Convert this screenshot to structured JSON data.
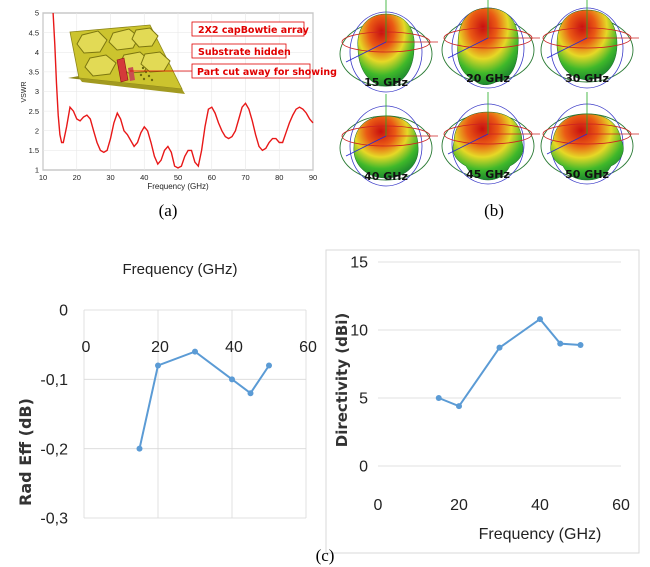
{
  "colors": {
    "vswr_line": "#e81818",
    "blue_series": "#5b9bd5",
    "callout_red": "#e00000",
    "board": "#c9c02c"
  },
  "panel_labels": {
    "a": "(a)",
    "b": "(b)",
    "c": "(c)"
  },
  "callouts": [
    "2X2 capBowtie array",
    "Substrate hidden",
    "Part cut away for showing"
  ],
  "patterns": [
    {
      "label": "15 GHz"
    },
    {
      "label": "20 GHz"
    },
    {
      "label": "30 GHz"
    },
    {
      "label": "40 GHz"
    },
    {
      "label": "45 GHz"
    },
    {
      "label": "50 GHz"
    }
  ],
  "chart_data": [
    {
      "id": "vswr",
      "type": "line",
      "xlabel": "Frequency (GHz)",
      "ylabel": "VSWR",
      "xlim": [
        10,
        90
      ],
      "ylim": [
        1,
        5
      ],
      "xticks": [
        "10",
        "20",
        "30",
        "40",
        "50",
        "60",
        "70",
        "80",
        "90"
      ],
      "yticks": [
        "1",
        "1.5",
        "2",
        "2.5",
        "3",
        "3.5",
        "4",
        "4.5",
        "5"
      ],
      "grid": true,
      "series": [
        {
          "x": [
            13,
            13.5,
            14,
            14.5,
            15,
            15.5,
            16,
            17,
            18,
            19,
            20,
            21,
            22,
            23,
            24,
            25,
            26,
            27,
            28,
            29,
            30,
            31,
            32,
            33,
            34,
            35,
            36,
            37,
            38,
            39,
            40,
            41,
            42,
            43,
            44,
            45,
            46,
            47,
            48,
            49,
            50,
            51,
            52,
            53,
            54,
            55,
            56,
            57,
            58,
            59,
            60,
            61,
            62,
            63,
            64,
            65,
            66,
            67,
            68,
            69,
            70,
            71,
            72,
            73,
            74,
            75,
            76,
            77,
            78,
            79,
            80,
            81,
            82,
            83,
            84,
            85,
            86,
            87,
            88,
            89,
            90
          ],
          "y": [
            5.0,
            4.2,
            3.2,
            2.4,
            1.9,
            1.7,
            1.7,
            2.1,
            2.6,
            2.5,
            2.3,
            2.25,
            2.35,
            2.4,
            2.3,
            2.0,
            1.7,
            1.5,
            1.45,
            1.5,
            1.8,
            2.2,
            2.45,
            2.3,
            2.0,
            1.9,
            1.75,
            1.6,
            1.7,
            1.95,
            2.1,
            2.0,
            1.7,
            1.35,
            1.15,
            1.25,
            1.5,
            1.6,
            1.45,
            1.1,
            1.05,
            1.1,
            1.35,
            1.5,
            1.5,
            1.2,
            1.1,
            1.5,
            2.1,
            2.55,
            2.6,
            2.45,
            2.2,
            2.0,
            1.85,
            1.8,
            1.85,
            2.0,
            2.3,
            2.6,
            2.7,
            2.55,
            2.25,
            1.9,
            1.6,
            1.5,
            1.55,
            1.7,
            1.8,
            1.8,
            1.7,
            1.7,
            1.95,
            2.2,
            2.4,
            2.55,
            2.6,
            2.55,
            2.45,
            2.3,
            2.2
          ]
        }
      ]
    },
    {
      "id": "rad_eff",
      "type": "line",
      "title": "Frequency (GHz)",
      "ylabel": "Rad Eff (dB)",
      "xlim": [
        0,
        60
      ],
      "ylim": [
        -0.3,
        0
      ],
      "xticks": [
        "0",
        "20",
        "40",
        "60"
      ],
      "yticks": [
        "0",
        "-0,1",
        "-0,2",
        "-0,3"
      ],
      "grid": true,
      "series": [
        {
          "x": [
            15,
            20,
            30,
            40,
            45,
            50
          ],
          "y": [
            -0.2,
            -0.08,
            -0.06,
            -0.1,
            -0.12,
            -0.08
          ]
        }
      ]
    },
    {
      "id": "directivity",
      "type": "line",
      "xlabel": "Frequency (GHz)",
      "ylabel": "Directivity (dBi)",
      "xlim": [
        0,
        60
      ],
      "ylim": [
        0,
        15
      ],
      "xticks": [
        "0",
        "20",
        "40",
        "60"
      ],
      "yticks": [
        "0",
        "5",
        "10",
        "15"
      ],
      "grid": true,
      "series": [
        {
          "x": [
            15,
            20,
            30,
            40,
            45,
            50
          ],
          "y": [
            5.0,
            4.4,
            8.7,
            10.8,
            9.0,
            8.9
          ]
        }
      ]
    }
  ]
}
